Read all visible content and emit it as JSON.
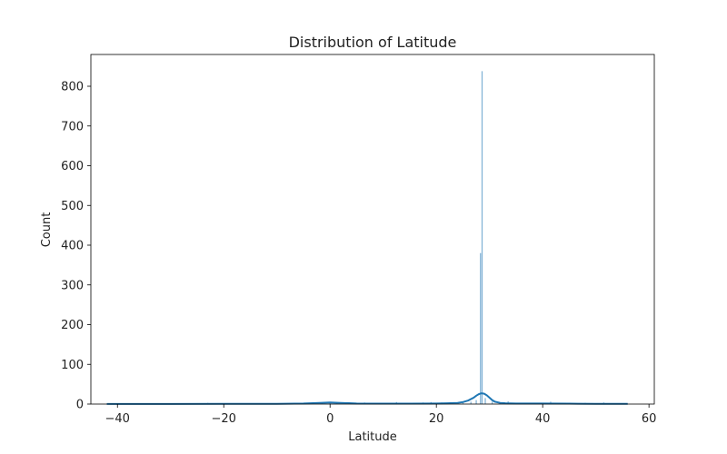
{
  "chart_data": {
    "type": "histogram",
    "title": "Distribution of Latitude",
    "xlabel": "Latitude",
    "ylabel": "Count",
    "xlim": [
      -45,
      61
    ],
    "ylim": [
      0,
      880
    ],
    "xticks": [
      -40,
      -20,
      0,
      20,
      40,
      60
    ],
    "xtick_labels": [
      "−40",
      "−20",
      "0",
      "20",
      "40",
      "60"
    ],
    "yticks": [
      0,
      100,
      200,
      300,
      400,
      500,
      600,
      700,
      800
    ],
    "ytick_labels": [
      "0",
      "100",
      "200",
      "300",
      "400",
      "500",
      "600",
      "700",
      "800"
    ],
    "grid": false,
    "legend": null,
    "bar_color": "#1f77b4",
    "kde_color": "#1f77b4",
    "bins": [
      {
        "x": -41.0,
        "count": 1
      },
      {
        "x": -36.5,
        "count": 1
      },
      {
        "x": -33.0,
        "count": 2
      },
      {
        "x": -23.0,
        "count": 3
      },
      {
        "x": -22.5,
        "count": 2
      },
      {
        "x": -15.0,
        "count": 1
      },
      {
        "x": -6.0,
        "count": 2
      },
      {
        "x": -1.5,
        "count": 3
      },
      {
        "x": 0.0,
        "count": 5
      },
      {
        "x": 1.3,
        "count": 3
      },
      {
        "x": 3.0,
        "count": 2
      },
      {
        "x": 6.5,
        "count": 4
      },
      {
        "x": 9.5,
        "count": 3
      },
      {
        "x": 12.5,
        "count": 5
      },
      {
        "x": 14.5,
        "count": 3
      },
      {
        "x": 17.5,
        "count": 4
      },
      {
        "x": 19.0,
        "count": 5
      },
      {
        "x": 21.0,
        "count": 4
      },
      {
        "x": 23.0,
        "count": 3
      },
      {
        "x": 25.0,
        "count": 5
      },
      {
        "x": 26.5,
        "count": 6
      },
      {
        "x": 27.5,
        "count": 10
      },
      {
        "x": 28.3,
        "count": 380
      },
      {
        "x": 28.6,
        "count": 838
      },
      {
        "x": 29.2,
        "count": 15
      },
      {
        "x": 30.5,
        "count": 6
      },
      {
        "x": 32.0,
        "count": 4
      },
      {
        "x": 33.5,
        "count": 7
      },
      {
        "x": 36.0,
        "count": 3
      },
      {
        "x": 38.5,
        "count": 2
      },
      {
        "x": 40.5,
        "count": 3
      },
      {
        "x": 41.5,
        "count": 6
      },
      {
        "x": 44.0,
        "count": 2
      },
      {
        "x": 48.0,
        "count": 3
      },
      {
        "x": 51.5,
        "count": 4
      },
      {
        "x": 53.0,
        "count": 2
      },
      {
        "x": 55.5,
        "count": 2
      }
    ],
    "kde": {
      "x": [
        -42,
        -30,
        -20,
        -10,
        -5,
        -2,
        0,
        2,
        5,
        10,
        15,
        20,
        22,
        24,
        25,
        26,
        27,
        27.5,
        28,
        28.5,
        29,
        29.5,
        30,
        30.5,
        31,
        32,
        33,
        35,
        40,
        45,
        50,
        56
      ],
      "y": [
        0.3,
        0.4,
        0.5,
        0.7,
        1.5,
        3.0,
        4.0,
        3.0,
        1.5,
        1.0,
        1.0,
        1.5,
        2.0,
        3.0,
        5.0,
        9.0,
        16.0,
        21.0,
        25.0,
        27.0,
        26.0,
        22.0,
        16.0,
        10.0,
        6.0,
        3.0,
        2.0,
        1.5,
        1.5,
        1.0,
        0.7,
        0.5
      ]
    }
  }
}
